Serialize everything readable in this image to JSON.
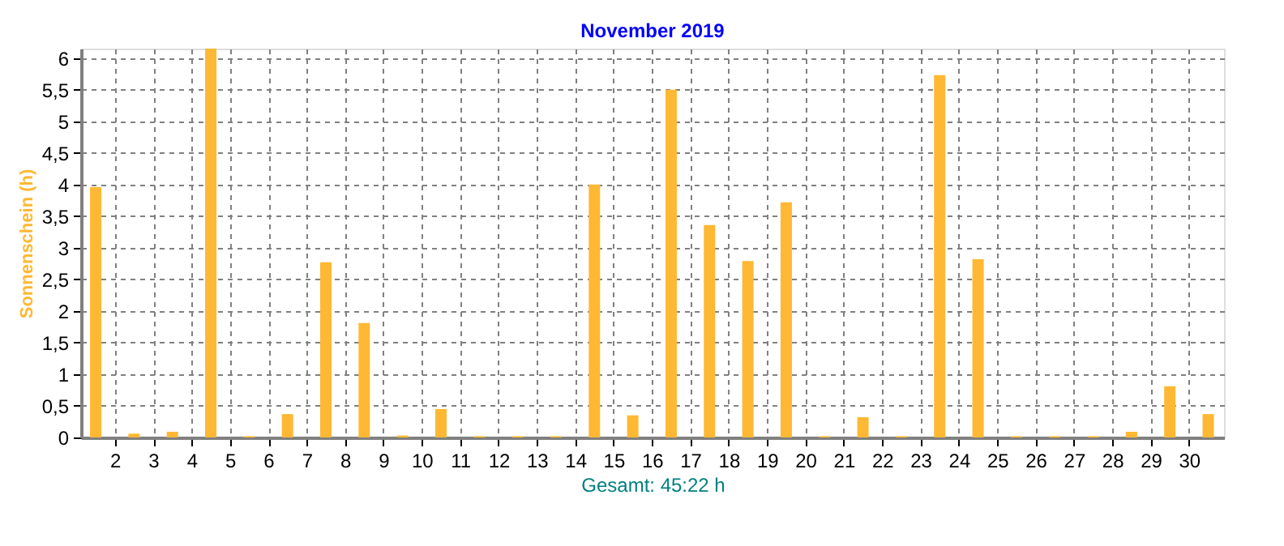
{
  "chart_data": {
    "type": "bar",
    "title": "November 2019",
    "xlabel": "Gesamt: 45:22 h",
    "ylabel": "Sonnenschein (h)",
    "x": [
      1.5,
      2.5,
      3.5,
      4.5,
      5.5,
      6.5,
      7.5,
      8.5,
      9.5,
      10.5,
      11.5,
      12.5,
      13.5,
      14.5,
      15.5,
      16.5,
      17.5,
      18.5,
      19.5,
      20.5,
      21.5,
      22.5,
      23.5,
      24.5,
      25.5,
      26.5,
      27.5,
      28.5,
      29.5,
      30.5
    ],
    "values": [
      3.96,
      0.06,
      0.09,
      6.15,
      0.02,
      0.37,
      2.77,
      1.81,
      0.03,
      0.45,
      0.02,
      0.02,
      0.02,
      4.0,
      0.35,
      5.5,
      3.36,
      2.79,
      3.72,
      0.02,
      0.32,
      0.02,
      5.73,
      2.82,
      0.02,
      0.02,
      0.02,
      0.09,
      0.81,
      0.37
    ],
    "color": "#ffb833",
    "xlim": [
      1.33,
      30.7
    ],
    "xticks": [
      2,
      3,
      4,
      5,
      6,
      7,
      8,
      9,
      10,
      11,
      12,
      13,
      14,
      15,
      16,
      17,
      18,
      19,
      20,
      21,
      22,
      23,
      24,
      25,
      26,
      27,
      28,
      29,
      30
    ],
    "ylim": [
      0,
      6.15
    ],
    "yticks": [
      0,
      {
        "value": 0.5,
        "label": "0,5"
      },
      1,
      {
        "value": 1.5,
        "label": "1,5"
      },
      2,
      {
        "value": 2.5,
        "label": "2,5"
      },
      3,
      {
        "value": 3.5,
        "label": "3,5"
      },
      4,
      {
        "value": 4.5,
        "label": "4,5"
      },
      5,
      {
        "value": 5.5,
        "label": "5,5"
      },
      6
    ],
    "grid": true
  }
}
